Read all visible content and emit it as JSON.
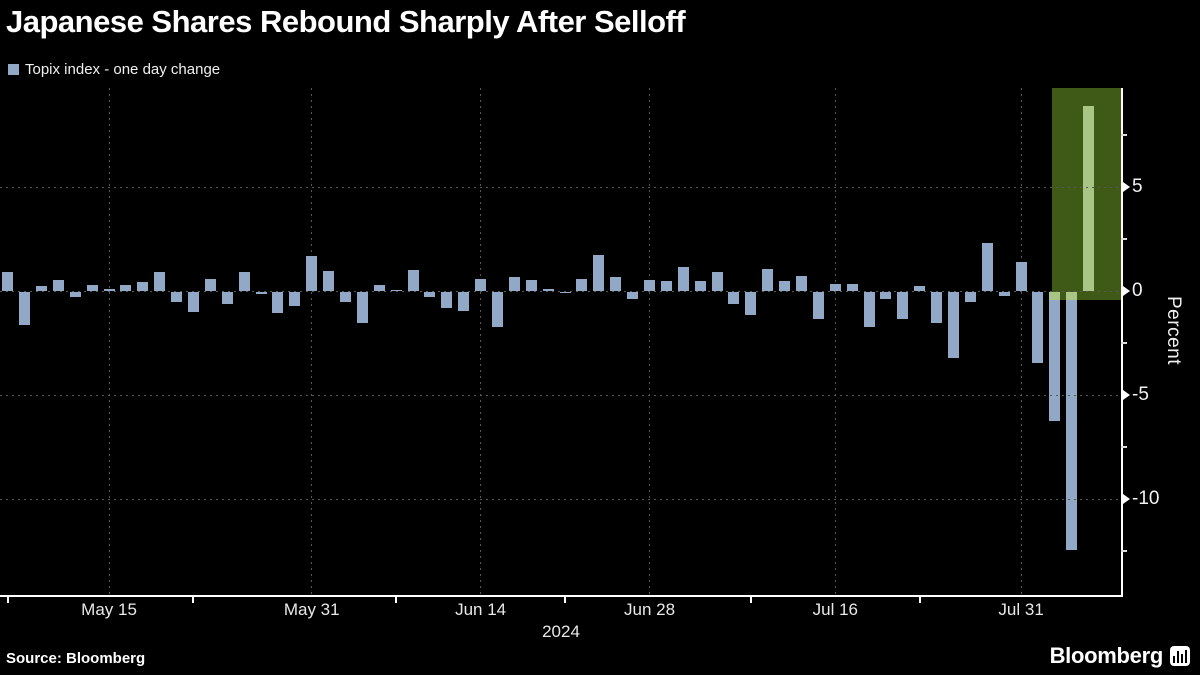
{
  "title": "Japanese Shares Rebound Sharply After Selloff",
  "legend": {
    "label": "Topix index - one day change"
  },
  "source": "Source: Bloomberg",
  "brand": {
    "wordmark": "Bloomberg"
  },
  "colors": {
    "background": "#000000",
    "bar": "#91a8c7",
    "highlight_box": "#3e5a16",
    "highlight_bar": "#a9c687",
    "grid": "#585858",
    "axis": "#ffffff"
  },
  "chart_data": {
    "type": "bar",
    "title": "Japanese Shares Rebound Sharply After Selloff",
    "series_name": "Topix index - one day change",
    "ylabel": "Percent",
    "x_year_label": "2024",
    "ylim": [
      -14.6,
      9.8
    ],
    "y_major_ticks": [
      5,
      0,
      -5,
      -10
    ],
    "y_minor_ticks": [
      7.5,
      2.5,
      -2.5,
      -7.5,
      -12.5
    ],
    "grid": "dotted",
    "legend_position": "top-left",
    "x_major_labels": [
      {
        "text": "May 15",
        "day_index": 6
      },
      {
        "text": "May 31",
        "day_index": 18
      },
      {
        "text": "Jun 14",
        "day_index": 28
      },
      {
        "text": "Jun 28",
        "day_index": 38
      },
      {
        "text": "Jul 16",
        "day_index": 49
      },
      {
        "text": "Jul 31",
        "day_index": 60
      }
    ],
    "x_minor_tick_day_indices": [
      0,
      11,
      23,
      33,
      44,
      54
    ],
    "dates": [
      "May 7",
      "May 8",
      "May 9",
      "May 10",
      "May 13",
      "May 14",
      "May 15",
      "May 16",
      "May 17",
      "May 20",
      "May 21",
      "May 22",
      "May 23",
      "May 24",
      "May 27",
      "May 28",
      "May 29",
      "May 30",
      "May 31",
      "Jun 3",
      "Jun 4",
      "Jun 5",
      "Jun 6",
      "Jun 7",
      "Jun 10",
      "Jun 11",
      "Jun 12",
      "Jun 13",
      "Jun 14",
      "Jun 17",
      "Jun 18",
      "Jun 19",
      "Jun 20",
      "Jun 21",
      "Jun 24",
      "Jun 25",
      "Jun 26",
      "Jun 27",
      "Jun 28",
      "Jul 1",
      "Jul 2",
      "Jul 3",
      "Jul 4",
      "Jul 5",
      "Jul 8",
      "Jul 9",
      "Jul 10",
      "Jul 11",
      "Jul 12",
      "Jul 16",
      "Jul 17",
      "Jul 18",
      "Jul 19",
      "Jul 22",
      "Jul 23",
      "Jul 24",
      "Jul 25",
      "Jul 26",
      "Jul 29",
      "Jul 30",
      "Jul 31",
      "Aug 1",
      "Aug 2",
      "Aug 5",
      "Aug 6"
    ],
    "values": [
      0.9,
      -1.6,
      0.25,
      0.55,
      -0.25,
      0.3,
      0.1,
      0.3,
      0.45,
      0.9,
      -0.5,
      -0.95,
      0.6,
      -0.6,
      0.9,
      -0.1,
      -1.0,
      -0.65,
      1.7,
      0.95,
      -0.5,
      -1.5,
      0.3,
      0.05,
      1.0,
      -0.25,
      -0.75,
      -0.9,
      0.6,
      -1.7,
      0.65,
      0.55,
      0.1,
      -0.05,
      0.6,
      1.75,
      0.65,
      -0.35,
      0.55,
      0.5,
      1.15,
      0.5,
      0.9,
      -0.6,
      -1.1,
      1.05,
      0.5,
      0.7,
      -1.3,
      0.35,
      0.35,
      -1.7,
      -0.35,
      -1.3,
      0.25,
      -1.5,
      -3.2,
      -0.5,
      2.3,
      -0.2,
      1.4,
      -3.4,
      -6.2,
      -12.4,
      8.9
    ],
    "highlight": {
      "covers_dates_from": "Aug 2",
      "covers_dates_to": "Aug 6",
      "from_day": 61.8,
      "to_day": 65.9,
      "bottom_pct": -0.45,
      "note": "green box highlighting the post-selloff rebound bar"
    }
  }
}
